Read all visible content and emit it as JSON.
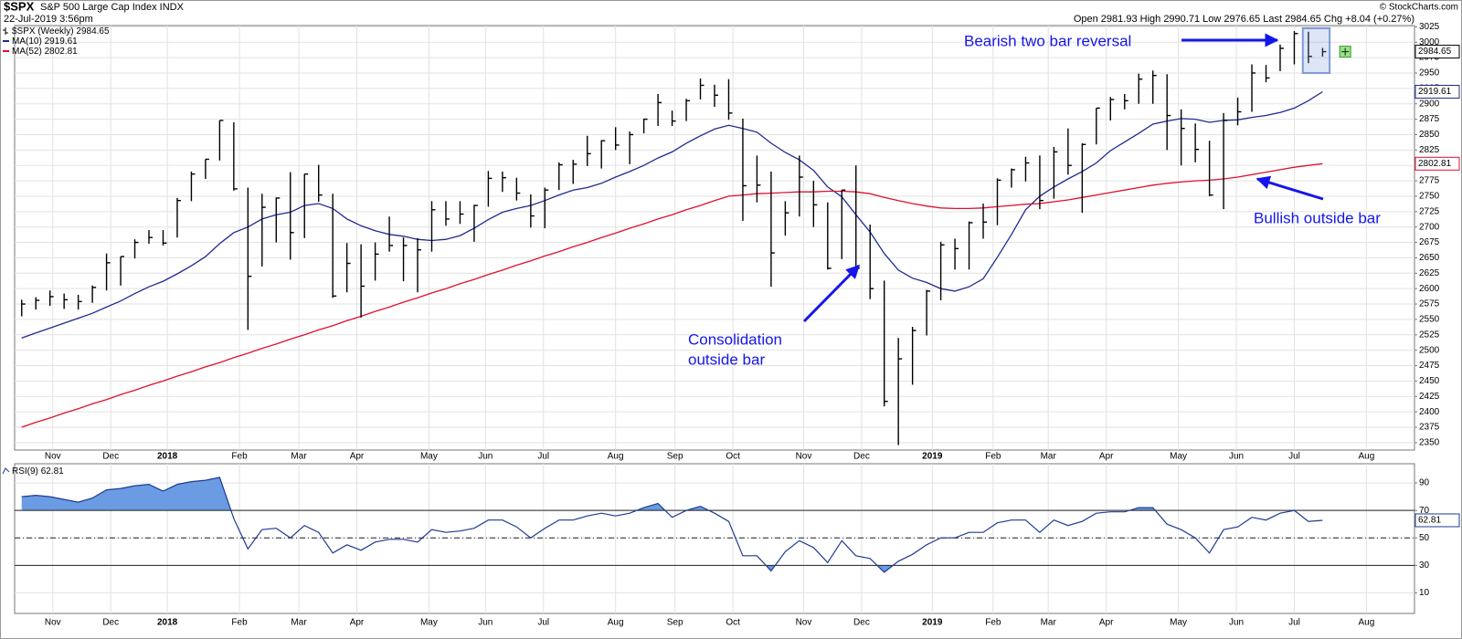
{
  "chart_data": [
    {
      "type": "ohlc",
      "title": "$SPX",
      "subtitle": "S&P 500 Large Cap Index INDX",
      "date": "22-Jul-2019 3:56pm",
      "source": "© StockCharts.com",
      "quote": {
        "labels": [
          "Open",
          "High",
          "Low",
          "Last",
          "Chg"
        ],
        "open": 2981.93,
        "change": "+8.04 (+0.27%)"
      },
      "annotations": [
        "Bearish two bar reversal",
        "Bullish outside bar",
        "Consolidation",
        "outside bar"
      ],
      "categories": [
        null,
        null,
        null,
        null,
        null,
        null,
        null,
        null,
        null,
        null,
        null,
        null,
        null,
        null,
        null,
        null,
        null,
        null,
        null,
        null,
        null,
        null,
        null,
        null,
        null,
        null,
        null,
        null,
        null,
        null,
        null,
        null,
        null,
        null,
        null,
        null,
        null,
        null,
        null,
        null,
        null,
        null,
        null,
        null,
        null,
        null,
        null,
        null,
        null,
        null,
        null,
        null,
        null,
        null,
        null,
        null,
        null,
        null,
        null,
        null,
        null,
        null,
        null,
        null,
        null,
        null,
        null,
        null,
        null,
        null,
        null,
        null,
        null,
        null,
        null,
        null,
        null,
        null,
        null,
        null,
        null,
        null,
        null,
        null,
        null,
        null,
        null,
        null,
        null,
        null,
        null,
        null,
        null
      ],
      "xlim": [
        -0.5,
        98.5
      ],
      "xticks": [
        {
          "value": 2.2,
          "label": "Nov"
        },
        {
          "value": 6.3,
          "label": "Dec"
        },
        {
          "value": 10.3,
          "label": "2018"
        },
        {
          "value": 15.4,
          "label": "Feb"
        },
        {
          "value": 19.6,
          "label": "Mar"
        },
        {
          "value": 23.7,
          "label": "Apr"
        },
        {
          "value": 28.8,
          "label": "May"
        },
        {
          "value": 32.8,
          "label": "Jun"
        },
        {
          "value": 36.9,
          "label": "Jul"
        },
        {
          "value": 42,
          "label": "Aug"
        },
        {
          "value": 46.2,
          "label": "Sep"
        },
        {
          "value": 50.3,
          "label": "Oct"
        },
        {
          "value": 55.3,
          "label": "Nov"
        },
        {
          "value": 59.4,
          "label": "Dec"
        },
        {
          "value": 64.4,
          "label": "2019"
        },
        {
          "value": 68.7,
          "label": "Feb"
        },
        {
          "value": 72.6,
          "label": "Mar"
        },
        {
          "value": 76.7,
          "label": "Apr"
        },
        {
          "value": 81.8,
          "label": "May"
        },
        {
          "value": 85.9,
          "label": "Jun"
        },
        {
          "value": 90,
          "label": "Jul"
        },
        {
          "value": 95.1,
          "label": "Aug"
        }
      ],
      "ylim": [
        2338,
        3027
      ],
      "yticks": [
        2350,
        2375,
        2400,
        2425,
        2450,
        2475,
        2500,
        2525,
        2550,
        2575,
        2600,
        2625,
        2650,
        2675,
        2700,
        2725,
        2750,
        2775,
        2800,
        2825,
        2850,
        2875,
        2900,
        2925,
        2950,
        2975,
        3000,
        3025
      ],
      "grid": true,
      "series": [
        {
          "name": "$SPX (Weekly)",
          "color": "#000000",
          "high": [
            2582,
            2586,
            2597,
            2592,
            2590,
            2605,
            2657,
            2652,
            2680,
            2695,
            2695,
            2747,
            2790,
            2810,
            2873,
            2870,
            2764,
            2754,
            2748,
            2789,
            2786,
            2801,
            2754,
            2674,
            2672,
            2675,
            2717,
            2683,
            2682,
            2742,
            2742,
            2742,
            2736,
            2791,
            2790,
            2780,
            2753,
            2764,
            2805,
            2809,
            2848,
            2841,
            2862,
            2855,
            2876,
            2916,
            2889,
            2908,
            2941,
            2931,
            2940,
            2876,
            2816,
            2790,
            2742,
            2816,
            2775,
            2740,
            2760,
            2800,
            2704,
            2613,
            2520,
            2538,
            2598,
            2676,
            2681,
            2709,
            2738,
            2779,
            2795,
            2814,
            2816,
            2830,
            2860,
            2836,
            2893,
            2911,
            2916,
            2949,
            2954,
            2948,
            2891,
            2868,
            2840,
            2885,
            2910,
            2964,
            2963,
            2996,
            3018,
            3017,
            2990.71
          ],
          "low": [
            2555,
            2566,
            2572,
            2567,
            2566,
            2577,
            2597,
            2605,
            2649,
            2673,
            2670,
            2683,
            2742,
            2778,
            2808,
            2759,
            2533,
            2636,
            2675,
            2647,
            2682,
            2741,
            2585,
            2594,
            2553,
            2613,
            2660,
            2612,
            2594,
            2660,
            2702,
            2705,
            2676,
            2733,
            2757,
            2743,
            2699,
            2698,
            2760,
            2770,
            2799,
            2795,
            2825,
            2802,
            2852,
            2864,
            2864,
            2872,
            2907,
            2895,
            2874,
            2710,
            2740,
            2603,
            2686,
            2717,
            2700,
            2631,
            2648,
            2621,
            2583,
            2409,
            2346,
            2444,
            2524,
            2581,
            2631,
            2631,
            2681,
            2703,
            2764,
            2774,
            2729,
            2746,
            2785,
            2723,
            2834,
            2873,
            2891,
            2900,
            2900,
            2825,
            2800,
            2805,
            2750,
            2729,
            2865,
            2887,
            2935,
            2953,
            2964,
            2966,
            2976.65
          ],
          "close": [
            2575,
            2581,
            2587,
            2582,
            2579,
            2602,
            2642,
            2652,
            2675,
            2683,
            2674,
            2743,
            2786,
            2810,
            2873,
            2762,
            2620,
            2732,
            2747,
            2691,
            2786,
            2752,
            2588,
            2641,
            2604,
            2656,
            2670,
            2670,
            2663,
            2728,
            2713,
            2721,
            2735,
            2779,
            2780,
            2755,
            2718,
            2760,
            2801,
            2802,
            2819,
            2840,
            2833,
            2850,
            2875,
            2902,
            2872,
            2905,
            2930,
            2914,
            2885,
            2767,
            2768,
            2658,
            2723,
            2781,
            2736,
            2633,
            2760,
            2633,
            2600,
            2417,
            2486,
            2532,
            2596,
            2671,
            2665,
            2707,
            2708,
            2776,
            2793,
            2804,
            2743,
            2822,
            2800,
            2834,
            2893,
            2907,
            2905,
            2940,
            2946,
            2881,
            2860,
            2826,
            2752,
            2873,
            2887,
            2950,
            2942,
            2990,
            3014,
            2977,
            2984.65
          ]
        },
        {
          "name": "MA(10)",
          "color": "#1f2b8f",
          "values": [
            2520,
            2528,
            2536,
            2544,
            2552,
            2560,
            2570,
            2580,
            2592,
            2603,
            2612,
            2624,
            2637,
            2652,
            2673,
            2691,
            2700,
            2713,
            2720,
            2724,
            2735,
            2738,
            2730,
            2713,
            2702,
            2694,
            2688,
            2685,
            2680,
            2678,
            2680,
            2686,
            2698,
            2712,
            2724,
            2730,
            2735,
            2743,
            2752,
            2760,
            2764,
            2771,
            2781,
            2790,
            2800,
            2812,
            2822,
            2836,
            2848,
            2859,
            2865,
            2860,
            2854,
            2836,
            2821,
            2809,
            2792,
            2765,
            2749,
            2720,
            2692,
            2657,
            2630,
            2617,
            2610,
            2600,
            2596,
            2603,
            2616,
            2651,
            2688,
            2728,
            2750,
            2765,
            2778,
            2790,
            2804,
            2824,
            2838,
            2852,
            2867,
            2872,
            2876,
            2875,
            2870,
            2873,
            2874,
            2878,
            2881,
            2886,
            2893,
            2905,
            2919.61
          ]
        },
        {
          "name": "MA(52)",
          "color": "#e0102f",
          "values": [
            2375,
            2383,
            2390,
            2398,
            2405,
            2413,
            2420,
            2428,
            2435,
            2443,
            2450,
            2458,
            2465,
            2473,
            2480,
            2488,
            2495,
            2503,
            2510,
            2518,
            2525,
            2533,
            2540,
            2548,
            2555,
            2563,
            2570,
            2578,
            2585,
            2593,
            2600,
            2608,
            2615,
            2623,
            2630,
            2638,
            2645,
            2653,
            2660,
            2668,
            2675,
            2683,
            2690,
            2698,
            2705,
            2713,
            2720,
            2728,
            2735,
            2743,
            2750,
            2752,
            2754,
            2755,
            2756,
            2757,
            2757,
            2758,
            2758,
            2757,
            2754,
            2748,
            2743,
            2738,
            2734,
            2731,
            2730,
            2730,
            2731,
            2733,
            2735,
            2737,
            2738,
            2741,
            2744,
            2748,
            2752,
            2756,
            2760,
            2764,
            2768,
            2771,
            2773,
            2775,
            2776,
            2778,
            2781,
            2785,
            2789,
            2793,
            2797,
            2800,
            2802.81
          ]
        }
      ]
    },
    {
      "type": "line",
      "xlim": [
        -0.5,
        98.5
      ],
      "xticks": [
        {
          "value": 2.2,
          "label": "Nov"
        },
        {
          "value": 6.3,
          "label": "Dec"
        },
        {
          "value": 10.3,
          "label": "2018"
        },
        {
          "value": 15.4,
          "label": "Feb"
        },
        {
          "value": 19.6,
          "label": "Mar"
        },
        {
          "value": 23.7,
          "label": "Apr"
        },
        {
          "value": 28.8,
          "label": "May"
        },
        {
          "value": 32.8,
          "label": "Jun"
        },
        {
          "value": 36.9,
          "label": "Jul"
        },
        {
          "value": 42,
          "label": "Aug"
        },
        {
          "value": 46.2,
          "label": "Sep"
        },
        {
          "value": 50.3,
          "label": "Oct"
        },
        {
          "value": 55.3,
          "label": "Nov"
        },
        {
          "value": 59.4,
          "label": "Dec"
        },
        {
          "value": 64.4,
          "label": "2019"
        },
        {
          "value": 68.7,
          "label": "Feb"
        },
        {
          "value": 72.6,
          "label": "Mar"
        },
        {
          "value": 76.7,
          "label": "Apr"
        },
        {
          "value": 81.8,
          "label": "May"
        },
        {
          "value": 85.9,
          "label": "Jun"
        },
        {
          "value": 90,
          "label": "Jul"
        },
        {
          "value": 95.1,
          "label": "Aug"
        }
      ],
      "ylim": [
        -5,
        104
      ],
      "yticks": [
        10,
        30,
        50,
        70,
        90
      ],
      "grid": true,
      "reference_lines": [
        {
          "y": 70,
          "dash": "solid",
          "fill": "above"
        },
        {
          "y": 50,
          "dash": "dashdot"
        },
        {
          "y": 30,
          "dash": "solid",
          "fill": "below"
        }
      ],
      "fill_color": "#6a9be3",
      "series": [
        {
          "name": "RSI(9)",
          "color": "#1f3a93",
          "values": [
            80,
            81,
            80,
            78,
            76,
            79,
            85,
            86,
            88,
            89,
            84,
            89,
            91,
            92,
            94,
            64,
            42,
            56,
            57,
            50,
            59,
            54,
            39,
            45,
            41,
            47,
            49,
            49,
            47,
            56,
            54,
            55,
            57,
            63,
            63,
            58,
            50,
            57,
            63,
            63,
            66,
            68,
            66,
            68,
            72,
            75,
            65,
            70,
            73,
            68,
            62,
            37,
            37,
            26,
            40,
            48,
            43,
            32,
            48,
            37,
            35,
            25,
            33,
            38,
            45,
            50,
            50,
            54,
            54,
            61,
            63,
            63,
            54,
            63,
            59,
            62,
            68,
            69,
            69,
            72,
            72,
            60,
            56,
            50,
            39,
            56,
            58,
            65,
            63,
            68,
            70,
            62,
            62.81
          ]
        }
      ]
    }
  ]
}
